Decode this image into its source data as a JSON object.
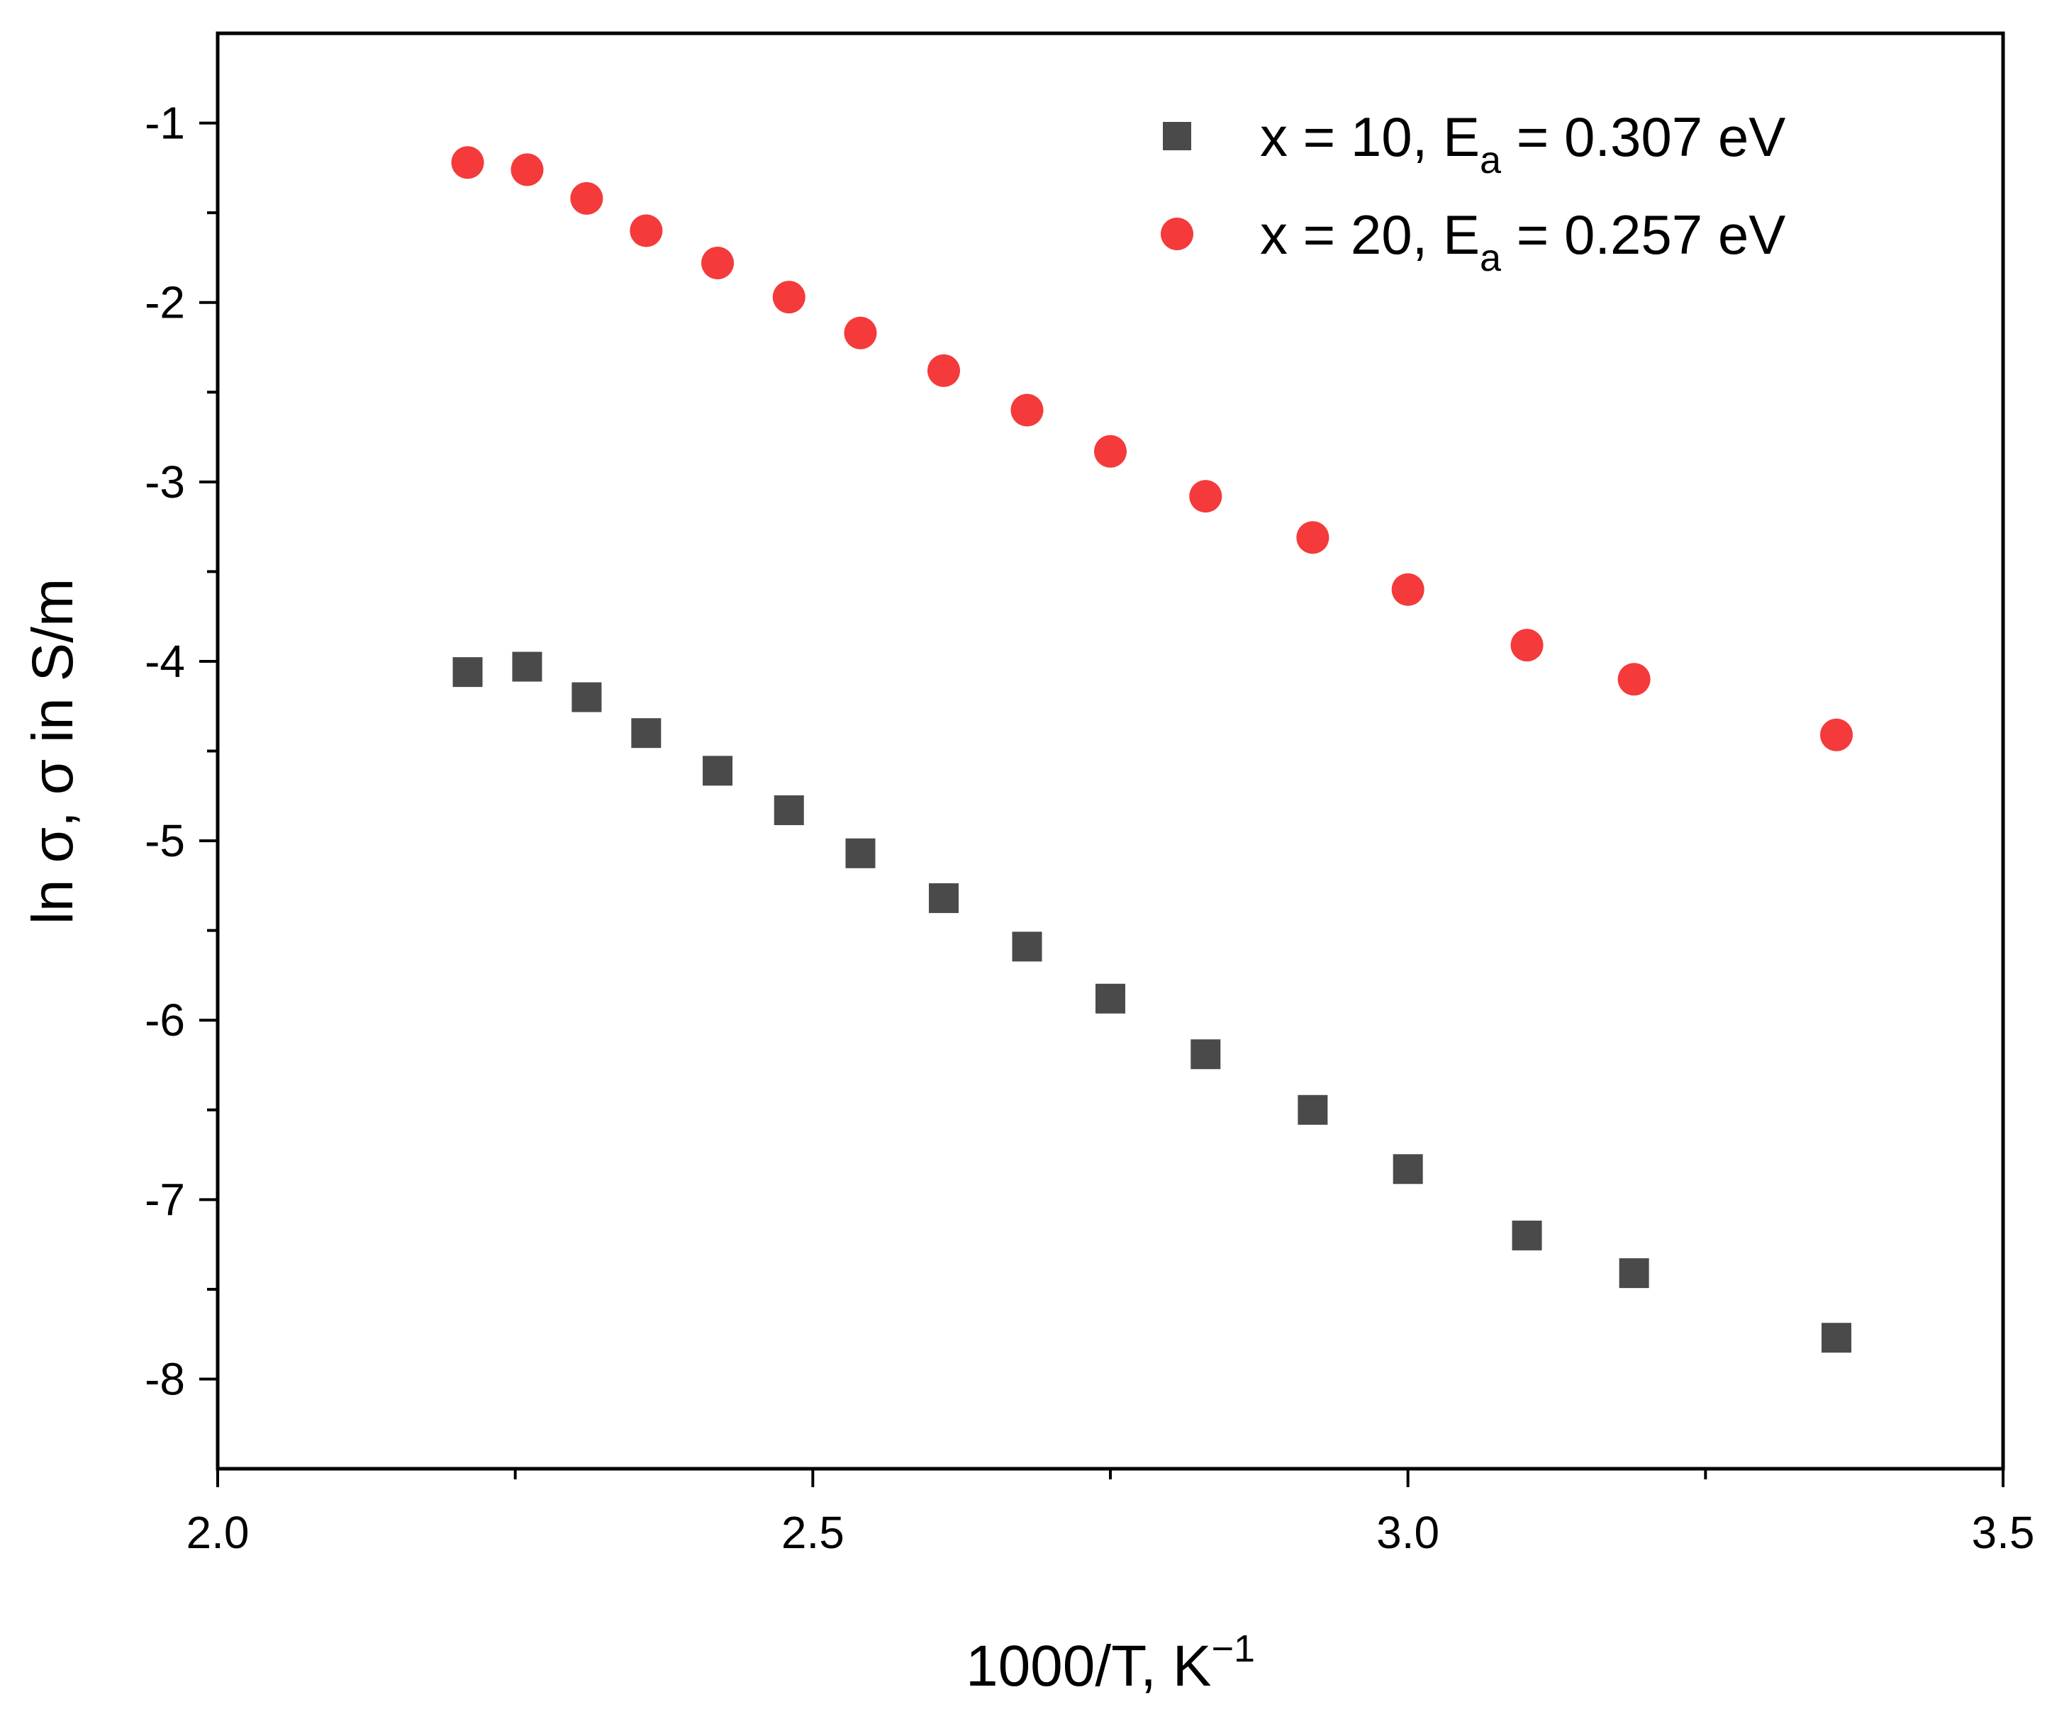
{
  "chart_data": {
    "type": "scatter",
    "title": "",
    "xlabel": {
      "base": "1000/T, K",
      "sup": "−1"
    },
    "ylabel": "ln σ, σ in S/m",
    "xlim": [
      2.0,
      3.5
    ],
    "ylim": [
      -8.5,
      -0.5
    ],
    "x_ticks": [
      {
        "value": 2.0,
        "label": "2.0"
      },
      {
        "value": 2.5,
        "label": "2.5"
      },
      {
        "value": 3.0,
        "label": "3.0"
      },
      {
        "value": 3.5,
        "label": "3.5"
      }
    ],
    "x_minor_ticks": [
      2.25,
      2.75,
      3.25
    ],
    "y_ticks": [
      {
        "value": -1,
        "label": "-1"
      },
      {
        "value": -2,
        "label": "-2"
      },
      {
        "value": -3,
        "label": "-3"
      },
      {
        "value": -4,
        "label": "-4"
      },
      {
        "value": -5,
        "label": "-5"
      },
      {
        "value": -6,
        "label": "-6"
      },
      {
        "value": -7,
        "label": "-7"
      },
      {
        "value": -8,
        "label": "-8"
      }
    ],
    "y_minor_ticks": [
      -1.5,
      -2.5,
      -3.5,
      -4.5,
      -5.5,
      -6.5,
      -7.5
    ],
    "grid": false,
    "legend_position": "top-right",
    "series": [
      {
        "name": "x = 10, E_a = 0.307 eV",
        "legend": {
          "pre": "x = 10, E",
          "sub": "a",
          "post": " = 0.307 eV"
        },
        "marker": "square",
        "color": "#4a4a4a",
        "x": [
          2.21,
          2.26,
          2.31,
          2.36,
          2.42,
          2.48,
          2.54,
          2.61,
          2.68,
          2.75,
          2.83,
          2.92,
          3.0,
          3.1,
          3.19,
          3.36
        ],
        "y": [
          -4.06,
          -4.03,
          -4.2,
          -4.4,
          -4.61,
          -4.83,
          -5.07,
          -5.32,
          -5.59,
          -5.88,
          -6.19,
          -6.5,
          -6.83,
          -7.2,
          -7.41,
          -7.77
        ]
      },
      {
        "name": "x = 20, E_a = 0.257 eV",
        "legend": {
          "pre": "x = 20, E",
          "sub": "a",
          "post": " = 0.257 eV"
        },
        "marker": "circle",
        "color": "#f43a3a",
        "x": [
          2.21,
          2.26,
          2.31,
          2.36,
          2.42,
          2.48,
          2.54,
          2.61,
          2.68,
          2.75,
          2.83,
          2.92,
          3.0,
          3.1,
          3.19,
          3.36
        ],
        "y": [
          -1.22,
          -1.26,
          -1.42,
          -1.6,
          -1.78,
          -1.97,
          -2.17,
          -2.38,
          -2.6,
          -2.83,
          -3.08,
          -3.31,
          -3.6,
          -3.91,
          -4.1,
          -4.41
        ]
      }
    ]
  }
}
